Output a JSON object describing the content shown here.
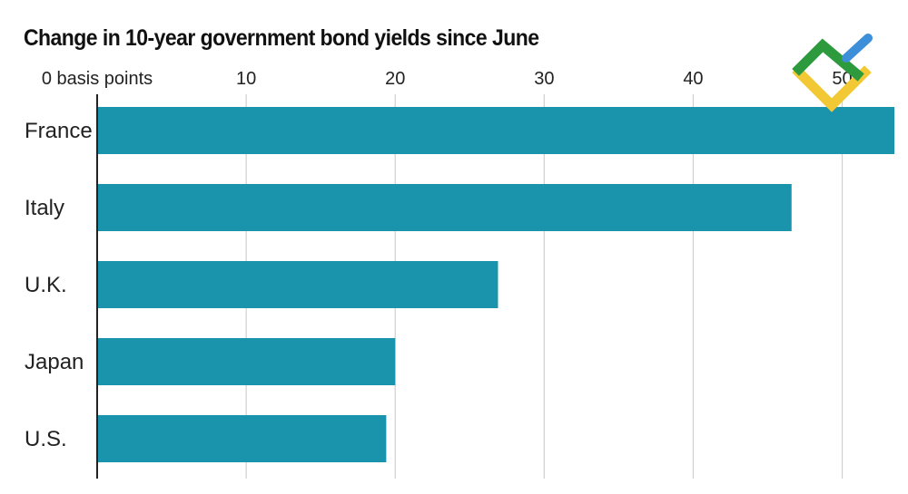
{
  "chart_data": {
    "type": "bar",
    "orientation": "horizontal",
    "title": "Change in 10-year government bond yields since June",
    "categories": [
      "France",
      "Italy",
      "U.K.",
      "Japan",
      "U.S."
    ],
    "values": [
      53.5,
      46.6,
      26.9,
      20.0,
      19.4
    ],
    "xlim": [
      0,
      53.5
    ],
    "x_ticks": [
      0,
      10,
      20,
      30,
      40,
      50
    ],
    "x_tick_labels": [
      "0 basis points",
      "10",
      "20",
      "30",
      "40",
      "50"
    ],
    "xlabel": "",
    "ylabel": "",
    "grid": true,
    "bar_color": "#1a93ad"
  },
  "logo": {
    "colors": [
      "#2e9a3e",
      "#f2c935",
      "#3c8fd8"
    ]
  }
}
